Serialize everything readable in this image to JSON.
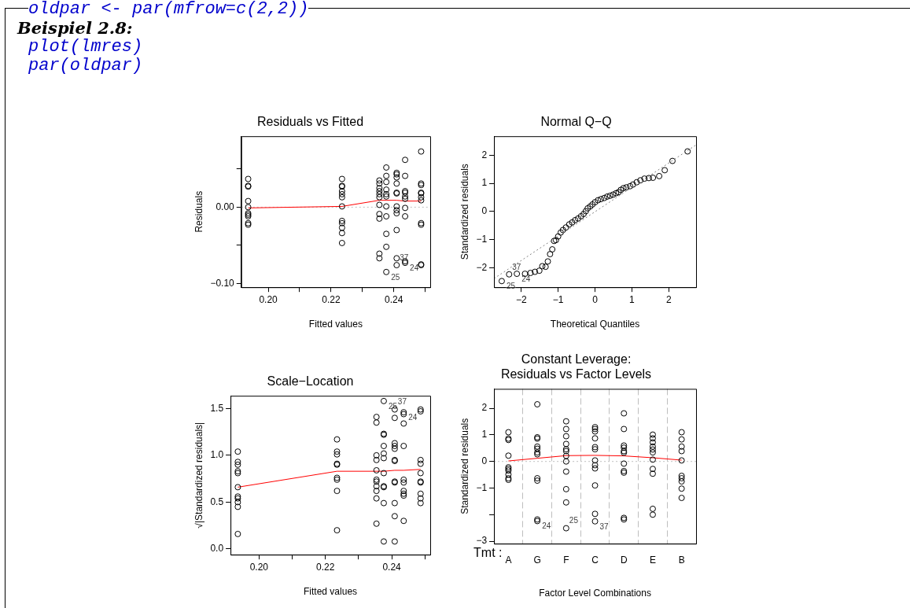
{
  "chart_data": [
    {
      "type": "other",
      "title": "Beispiel 2.8:",
      "annotations": [
        "oldpar <- par(mfrow=c(2,2))",
        "plot(lmres)",
        "par(oldpar)"
      ]
    },
    {
      "type": "scatter",
      "title": "Residuals vs Fitted",
      "xlabel": "Fitted values",
      "ylabel": "Residuals",
      "xlim": [
        0.1914,
        0.2516
      ],
      "ylim": [
        -0.105,
        0.093
      ],
      "xticks": [
        {
          "value": 0.2,
          "label": "0.20"
        },
        {
          "value": 0.21,
          "label": null
        },
        {
          "value": 0.22,
          "label": "0.22"
        },
        {
          "value": 0.23,
          "label": null
        },
        {
          "value": 0.24,
          "label": "0.24"
        },
        {
          "value": 0.25,
          "label": null
        }
      ],
      "yticks": [
        {
          "value": -0.1,
          "label": "−0.10"
        },
        {
          "value": -0.05,
          "label": null
        },
        {
          "value": 0,
          "label": "0.00"
        },
        {
          "value": 0.05,
          "label": null
        }
      ],
      "series": [
        {
          "type": "scatter",
          "color": "#000000",
          "marker": "circle",
          "x": [
            0.1936,
            0.1936,
            0.1936,
            0.1936,
            0.1936,
            0.1936,
            0.1936,
            0.1936,
            0.1936,
            0.1936,
            0.2235,
            0.2235,
            0.2235,
            0.2235,
            0.2235,
            0.2235,
            0.2235,
            0.2235,
            0.2235,
            0.2235,
            0.2235,
            0.2235,
            0.2354,
            0.2354,
            0.2354,
            0.2354,
            0.2354,
            0.2354,
            0.2354,
            0.2354,
            0.2354,
            0.2354,
            0.2354,
            0.2376,
            0.2376,
            0.2376,
            0.2376,
            0.2376,
            0.2376,
            0.2376,
            0.2376,
            0.2376,
            0.2376,
            0.2376,
            0.2409,
            0.2409,
            0.2409,
            0.2409,
            0.2409,
            0.2409,
            0.2409,
            0.2409,
            0.2409,
            0.2409,
            0.2409,
            0.2409,
            0.2436,
            0.2436,
            0.2436,
            0.2436,
            0.2436,
            0.2436,
            0.2436,
            0.2436,
            0.2436,
            0.2436,
            0.2487,
            0.2487,
            0.2487,
            0.2487,
            0.2487,
            0.2487,
            0.2487,
            0.2487,
            0.2487,
            0.2487,
            0.2487
          ],
          "values": [
            0.037,
            0.028,
            0.027,
            0.008,
            0.0,
            -0.008,
            -0.01,
            -0.012,
            -0.021,
            -0.023,
            0.037,
            0.028,
            0.027,
            0.021,
            0.017,
            0.013,
            0.001,
            -0.018,
            -0.021,
            -0.027,
            -0.034,
            -0.047,
            0.035,
            0.031,
            0.025,
            0.021,
            0.017,
            0.013,
            0.003,
            -0.009,
            -0.015,
            -0.061,
            -0.067,
            0.052,
            0.041,
            0.033,
            0.023,
            0.017,
            0.014,
            0.001,
            -0.012,
            -0.035,
            -0.052,
            -0.085,
            0.045,
            0.043,
            0.039,
            0.031,
            0.019,
            0.018,
            0.001,
            -0.004,
            -0.008,
            -0.03,
            -0.067,
            -0.076,
            0.062,
            0.041,
            0.021,
            0.019,
            0.014,
            0.011,
            -0.001,
            -0.012,
            -0.071,
            -0.073,
            0.073,
            0.031,
            0.029,
            0.019,
            0.018,
            0.013,
            0.009,
            -0.021,
            -0.023,
            -0.075,
            -0.076
          ]
        },
        {
          "type": "line",
          "color": "#ff0000",
          "marker": "none",
          "x": [
            0.1936,
            0.2235,
            0.2354,
            0.2376,
            0.2409,
            0.2436,
            0.2487
          ],
          "values": [
            -0.001,
            0.001,
            0.009,
            0.009,
            0.009,
            0.008,
            0.008
          ]
        }
      ],
      "ref_lines": [
        {
          "axis": "y",
          "value": 0,
          "color": "#bebebe",
          "line_style": "dotted"
        }
      ],
      "annotations": [
        {
          "text": "25",
          "x": 0.2376,
          "y": -0.085
        },
        {
          "text": "37",
          "x": 0.2409,
          "y": -0.076
        },
        {
          "text": "24",
          "x": 0.2436,
          "y": -0.073
        }
      ]
    },
    {
      "type": "scatter",
      "title": "Normal Q−Q",
      "xlabel": "Theoretical Quantiles",
      "ylabel": "Standardized residuals",
      "xlim": [
        -2.74,
        2.74
      ],
      "ylim": [
        -2.7,
        2.68
      ],
      "xticks": [
        {
          "value": -2,
          "label": "−2"
        },
        {
          "value": -1,
          "label": "−1"
        },
        0,
        1,
        2
      ],
      "yticks": [
        {
          "value": -2,
          "label": "−2"
        },
        {
          "value": -1,
          "label": "−1"
        },
        0,
        1,
        2
      ],
      "series": [
        {
          "type": "line",
          "color": "#808080",
          "marker": "none",
          "line_style": "dotted",
          "x": [
            -2.74,
            2.74
          ],
          "values": [
            -2.39,
            2.37
          ]
        },
        {
          "type": "scatter",
          "color": "#000000",
          "marker": "circle",
          "x": [
            -2.53,
            -2.33,
            -2.12,
            -1.9,
            -1.75,
            -1.63,
            -1.51,
            -1.43,
            -1.34,
            -1.28,
            -1.22,
            -1.16,
            -1.11,
            -1.06,
            -1.0,
            -0.93,
            -0.87,
            -0.79,
            -0.7,
            -0.62,
            -0.54,
            -0.46,
            -0.38,
            -0.31,
            -0.25,
            -0.2,
            -0.13,
            -0.07,
            0.0,
            0.08,
            0.16,
            0.25,
            0.33,
            0.41,
            0.49,
            0.57,
            0.64,
            0.7,
            0.77,
            0.85,
            0.95,
            1.03,
            1.13,
            1.23,
            1.34,
            1.46,
            1.57,
            1.74,
            1.89,
            2.1,
            2.51
          ],
          "values": [
            -2.48,
            -2.24,
            -2.22,
            -2.22,
            -2.19,
            -2.15,
            -2.11,
            -1.95,
            -1.97,
            -1.78,
            -1.52,
            -1.35,
            -1.05,
            -1.02,
            -0.89,
            -0.75,
            -0.66,
            -0.57,
            -0.46,
            -0.39,
            -0.31,
            -0.25,
            -0.17,
            -0.09,
            0.01,
            0.11,
            0.18,
            0.25,
            0.33,
            0.4,
            0.44,
            0.48,
            0.53,
            0.56,
            0.6,
            0.65,
            0.69,
            0.77,
            0.83,
            0.86,
            0.9,
            0.96,
            1.04,
            1.11,
            1.17,
            1.19,
            1.2,
            1.26,
            1.47,
            1.8,
            2.14
          ]
        }
      ],
      "annotations": [
        {
          "text": "25",
          "x": -2.53,
          "y": -2.48
        },
        {
          "text": "37",
          "x": -2.33,
          "y": -2.24
        },
        {
          "text": "24",
          "x": -2.12,
          "y": -2.22
        }
      ]
    },
    {
      "type": "scatter",
      "title": "Scale−Location",
      "xlabel": "Fitted values",
      "ylabel": "√|Standardized residuals|",
      "xlim": [
        0.1914,
        0.2516
      ],
      "ylim": [
        -0.061,
        1.636
      ],
      "xticks": [
        {
          "value": 0.2,
          "label": "0.20"
        },
        {
          "value": 0.21,
          "label": null
        },
        {
          "value": 0.22,
          "label": "0.22"
        },
        {
          "value": 0.23,
          "label": null
        },
        {
          "value": 0.24,
          "label": "0.24"
        },
        {
          "value": 0.25,
          "label": null
        }
      ],
      "yticks": [
        {
          "value": 0,
          "label": "0.0"
        },
        {
          "value": 0.5,
          "label": "0.5"
        },
        {
          "value": 1,
          "label": "1.0"
        },
        {
          "value": 1.5,
          "label": "1.5"
        }
      ],
      "series": [
        {
          "type": "scatter",
          "color": "#000000",
          "marker": "circle",
          "x": [
            0.1936,
            0.1936,
            0.1936,
            0.1936,
            0.1936,
            0.1936,
            0.1936,
            0.1936,
            0.1936,
            0.1936,
            0.1936,
            0.2235,
            0.2235,
            0.2235,
            0.2235,
            0.2235,
            0.2235,
            0.2235,
            0.2235,
            0.2235,
            0.2354,
            0.2354,
            0.2354,
            0.2354,
            0.2354,
            0.2354,
            0.2354,
            0.2354,
            0.2354,
            0.2354,
            0.2354,
            0.2376,
            0.2376,
            0.2376,
            0.2376,
            0.2376,
            0.2376,
            0.2376,
            0.2376,
            0.2376,
            0.2376,
            0.2376,
            0.2409,
            0.2409,
            0.2409,
            0.2409,
            0.2409,
            0.2409,
            0.2409,
            0.2409,
            0.2409,
            0.2409,
            0.2409,
            0.2409,
            0.2436,
            0.2436,
            0.2436,
            0.2436,
            0.2436,
            0.2436,
            0.2436,
            0.2436,
            0.2436,
            0.2436,
            0.2487,
            0.2487,
            0.2487,
            0.2487,
            0.2487,
            0.2487,
            0.2487,
            0.2487,
            0.2487,
            0.2487
          ],
          "values": [
            1.04,
            0.93,
            0.9,
            0.83,
            0.81,
            0.66,
            0.56,
            0.54,
            0.5,
            0.45,
            0.16,
            1.17,
            1.04,
            1.01,
            0.91,
            0.9,
            0.76,
            0.74,
            0.62,
            0.2,
            1.41,
            1.35,
            1.0,
            0.95,
            0.84,
            0.74,
            0.72,
            0.67,
            0.62,
            0.54,
            0.27,
            1.58,
            1.23,
            1.22,
            1.1,
            1.02,
            0.97,
            0.81,
            0.67,
            0.66,
            0.49,
            0.08,
            1.49,
            1.4,
            1.13,
            1.1,
            1.07,
            0.95,
            0.94,
            0.72,
            0.71,
            0.49,
            0.35,
            0.08,
            1.46,
            1.44,
            1.34,
            1.1,
            0.74,
            0.71,
            0.62,
            0.59,
            0.57,
            0.3,
            1.49,
            1.47,
            0.95,
            0.91,
            0.81,
            0.72,
            0.71,
            0.59,
            0.54,
            0.49
          ]
        },
        {
          "type": "line",
          "color": "#ff0000",
          "marker": "none",
          "x": [
            0.1936,
            0.2235,
            0.2354,
            0.2376,
            0.2409,
            0.2436,
            0.2487
          ],
          "values": [
            0.66,
            0.83,
            0.83,
            0.83,
            0.84,
            0.84,
            0.85
          ]
        }
      ],
      "annotations": [
        {
          "text": "25",
          "x": 0.2376,
          "y": 1.58
        },
        {
          "text": "37",
          "x": 0.2409,
          "y": 1.49
        },
        {
          "text": "24",
          "x": 0.2436,
          "y": 1.46
        }
      ]
    },
    {
      "type": "scatter",
      "title": "Constant Leverage:\nResiduals vs Factor Levels",
      "xlabel": "Factor Level Combinations",
      "ylabel": "Standardized residuals",
      "categories": [
        "A",
        "G",
        "F",
        "C",
        "D",
        "E",
        "B"
      ],
      "ylim": [
        -3.09,
        2.73
      ],
      "yticks": [
        {
          "value": -3,
          "label": "−3"
        },
        {
          "value": -2,
          "label": null
        },
        {
          "value": -1,
          "label": "−1"
        },
        0,
        1,
        2
      ],
      "grid": "x",
      "series": [
        {
          "type": "scatter",
          "color": "#000000",
          "marker": "circle",
          "x": [
            "A",
            "A",
            "A",
            "A",
            "A",
            "A",
            "A",
            "A",
            "A",
            "A",
            "G",
            "G",
            "G",
            "G",
            "G",
            "G",
            "G",
            "G",
            "G",
            "G",
            "G",
            "F",
            "F",
            "F",
            "F",
            "F",
            "F",
            "F",
            "F",
            "F",
            "F",
            "F",
            "F",
            "C",
            "C",
            "C",
            "C",
            "C",
            "C",
            "C",
            "C",
            "C",
            "C",
            "C",
            "C",
            "D",
            "D",
            "D",
            "D",
            "D",
            "D",
            "D",
            "D",
            "D",
            "D",
            "D",
            "E",
            "E",
            "E",
            "E",
            "E",
            "E",
            "E",
            "E",
            "E",
            "E",
            "E",
            "B",
            "B",
            "B",
            "B",
            "B",
            "B",
            "B",
            "B",
            "B",
            "B"
          ],
          "values": [
            1.1,
            0.86,
            0.81,
            0.22,
            -0.22,
            -0.28,
            -0.34,
            -0.49,
            -0.63,
            -0.69,
            2.15,
            0.91,
            0.86,
            0.56,
            0.48,
            0.34,
            0.27,
            -0.63,
            -0.72,
            -2.18,
            -2.24,
            1.51,
            1.22,
            0.95,
            0.66,
            0.46,
            0.39,
            0.21,
            0,
            -0.38,
            -1.04,
            -1.54,
            -2.51,
            1.29,
            1.22,
            1.13,
            0.87,
            0.54,
            0.46,
            0.04,
            -0.14,
            -0.26,
            -0.9,
            -1.97,
            -2.25,
            1.81,
            1.22,
            0.6,
            0.52,
            0.39,
            0.33,
            -0.08,
            -0.36,
            -0.42,
            -2.12,
            -2.18,
            1.01,
            0.87,
            0.72,
            0.56,
            0.45,
            0.34,
            0.07,
            -0.28,
            -0.46,
            -1.78,
            -2.0,
            1.1,
            0.83,
            0.56,
            0.39,
            0.04,
            -0.54,
            -0.63,
            -0.75,
            -1.02,
            -1.37
          ]
        },
        {
          "type": "line",
          "color": "#ff0000",
          "marker": "none",
          "x": [
            "A",
            "G",
            "F",
            "C",
            "D",
            "E",
            "B"
          ],
          "values": [
            0.02,
            0.12,
            0.22,
            0.23,
            0.21,
            0.14,
            0.05
          ]
        }
      ],
      "ref_lines": [
        {
          "axis": "y",
          "value": 0,
          "color": "#bebebe",
          "line_style": "dotted"
        }
      ],
      "annotations": [
        "Tmt :",
        {
          "text": "24",
          "x": "G",
          "y": -2.24
        },
        {
          "text": "25",
          "x": "F",
          "y": -2.51
        },
        {
          "text": "37",
          "x": "C",
          "y": -2.25
        }
      ]
    }
  ]
}
